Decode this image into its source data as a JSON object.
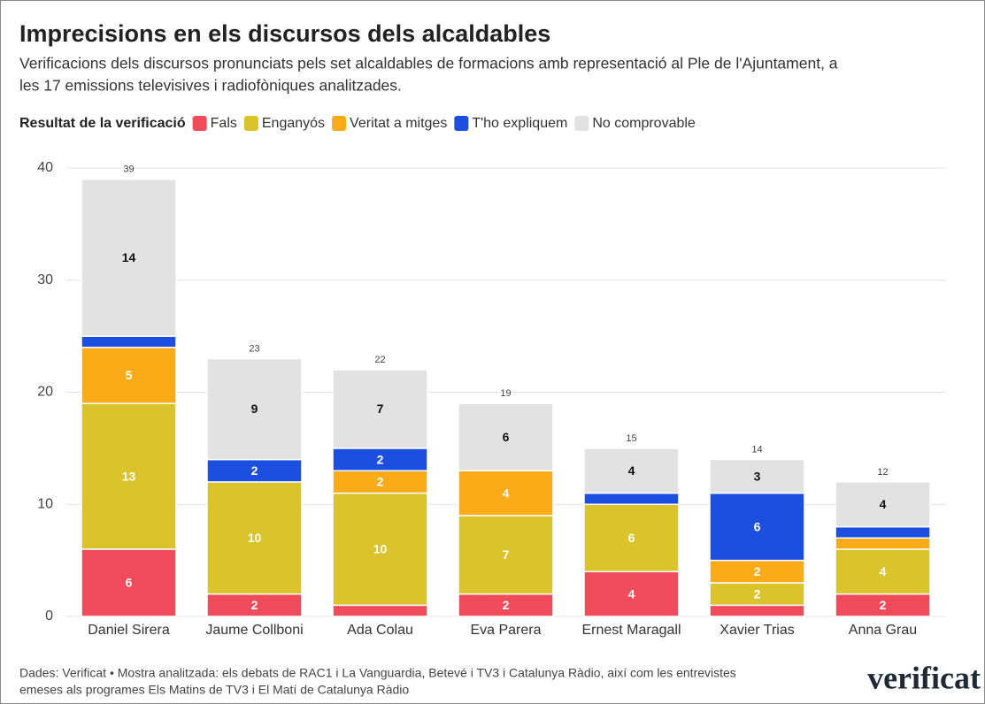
{
  "chart_data": {
    "type": "stacked_bar",
    "title": "Imprecisions en els discursos dels alcaldables",
    "subtitle": [
      "Verificacions dels discursos pronunciats pels set alcaldables de formacions amb representació al Ple de l'Ajuntament, a",
      "les 17 emissions televisives i radiofòniques analitzades."
    ],
    "legend_title": "Resultat de la verificació",
    "categories": [
      "Daniel Sirera",
      "Jaume Collboni",
      "Ada Colau",
      "Eva Parera",
      "Ernest Maragall",
      "Xavier Trias",
      "Anna Grau"
    ],
    "series": [
      {
        "name": "Fals",
        "color": "#ef4b5a",
        "values": [
          6,
          2,
          1,
          2,
          4,
          1,
          2
        ]
      },
      {
        "name": "Enganyós",
        "color": "#dbc32b",
        "values": [
          13,
          10,
          10,
          7,
          6,
          2,
          4
        ]
      },
      {
        "name": "Veritat a mitges",
        "color": "#fbab18",
        "values": [
          5,
          0,
          2,
          4,
          0,
          2,
          1
        ]
      },
      {
        "name": "T'ho expliquem",
        "color": "#1c4fe0",
        "values": [
          1,
          2,
          2,
          0,
          1,
          6,
          1
        ]
      },
      {
        "name": "No comprovable",
        "color": "#e2e2e2",
        "values": [
          14,
          9,
          7,
          6,
          4,
          3,
          4
        ]
      }
    ],
    "totals": [
      39,
      23,
      22,
      19,
      15,
      14,
      12
    ],
    "ylim": [
      0,
      40
    ],
    "yticks": [
      0,
      10,
      20,
      30,
      40
    ],
    "grid": true,
    "source": [
      "Dades: Verificat • Mostra analitzada: els debats de RAC1 i La Vanguardia, Betevé i TV3 i Catalunya Ràdio, així com les entrevistes",
      "emeses als programes Els Matins de TV3 i El Matí de Catalunya Ràdio"
    ],
    "logo": "verificat"
  }
}
